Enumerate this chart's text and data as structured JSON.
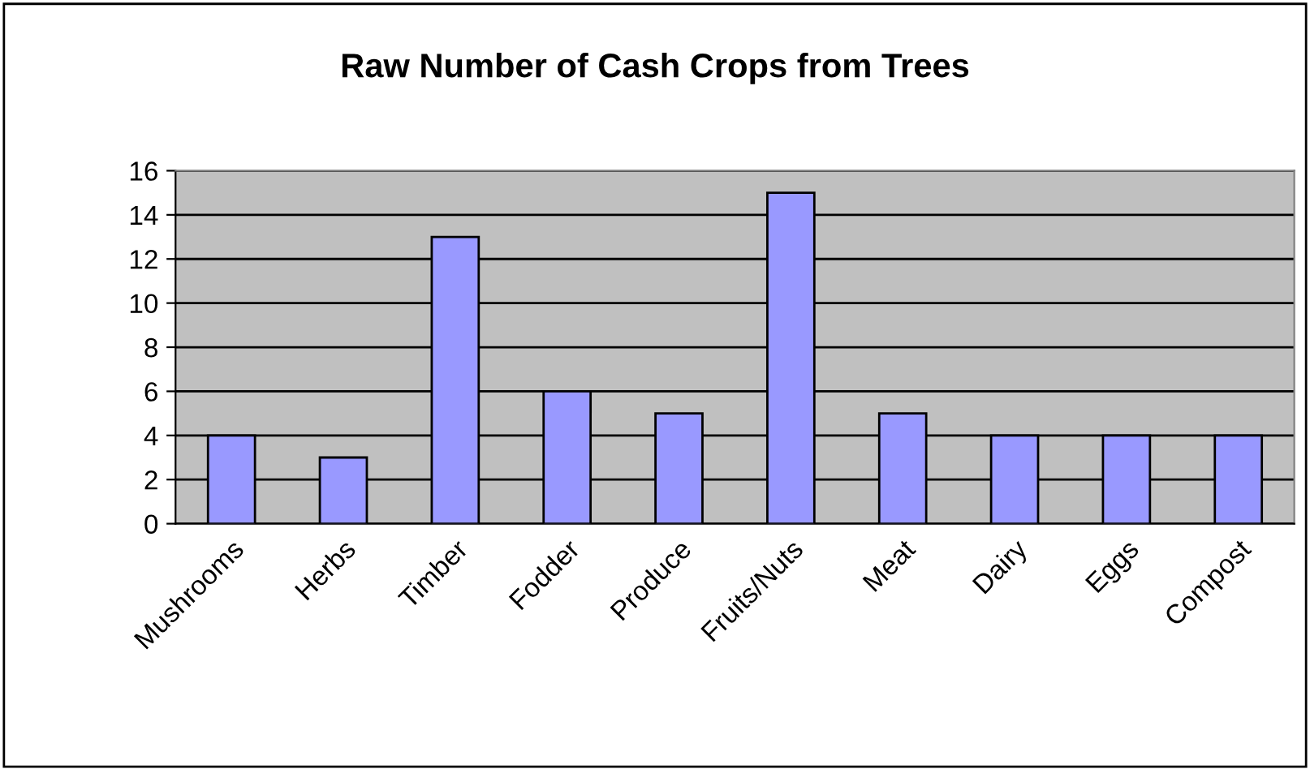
{
  "chart_data": {
    "type": "bar",
    "title": "Raw Number of Cash Crops from Trees",
    "categories": [
      "Mushrooms",
      "Herbs",
      "Timber",
      "Fodder",
      "Produce",
      "Fruits/Nuts",
      "Meat",
      "Dairy",
      "Eggs",
      "Compost"
    ],
    "values": [
      4,
      3,
      13,
      6,
      5,
      15,
      5,
      4,
      4,
      4
    ],
    "color": "#9999ff",
    "ylim": [
      0,
      16
    ],
    "yticks": [
      0,
      2,
      4,
      6,
      8,
      10,
      12,
      14,
      16
    ],
    "grid": "y"
  }
}
